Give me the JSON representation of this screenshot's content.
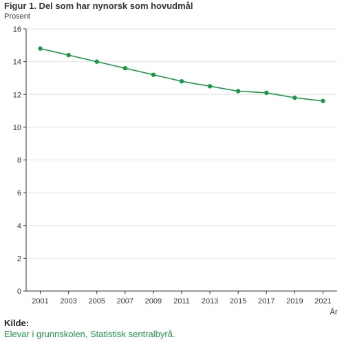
{
  "chart_data": {
    "type": "line",
    "title": "Figur 1. Del som har nynorsk som hovudmål",
    "ylabel": "Prosent",
    "xlabel": "År",
    "ylim": [
      0,
      16
    ],
    "yticks": [
      0,
      2,
      4,
      6,
      8,
      10,
      12,
      14,
      16
    ],
    "categories": [
      "2001",
      "2003",
      "2005",
      "2007",
      "2009",
      "2011",
      "2013",
      "2015",
      "2017",
      "2019",
      "2021"
    ],
    "x": [
      2001,
      2002,
      2003,
      2004,
      2005,
      2006,
      2007,
      2008,
      2009,
      2010,
      2011,
      2012,
      2013,
      2014,
      2015,
      2016,
      2017,
      2018,
      2019,
      2020,
      2021
    ],
    "series": [
      {
        "color": "#1a9a47",
        "values": [
          14.8,
          14.6,
          14.4,
          14.2,
          14.0,
          13.8,
          13.6,
          13.4,
          13.2,
          13.0,
          12.8,
          12.65,
          12.5,
          12.35,
          12.2,
          12.15,
          12.1,
          11.95,
          11.8,
          11.7,
          11.6
        ],
        "point_years": [
          2001,
          2003,
          2005,
          2007,
          2009,
          2011,
          2013,
          2015,
          2017,
          2019,
          2021
        ]
      }
    ],
    "grid": true
  },
  "source": {
    "heading": "Kilde:",
    "text": "Elevar i grunnskolen, Statistisk sentralbyrå."
  }
}
